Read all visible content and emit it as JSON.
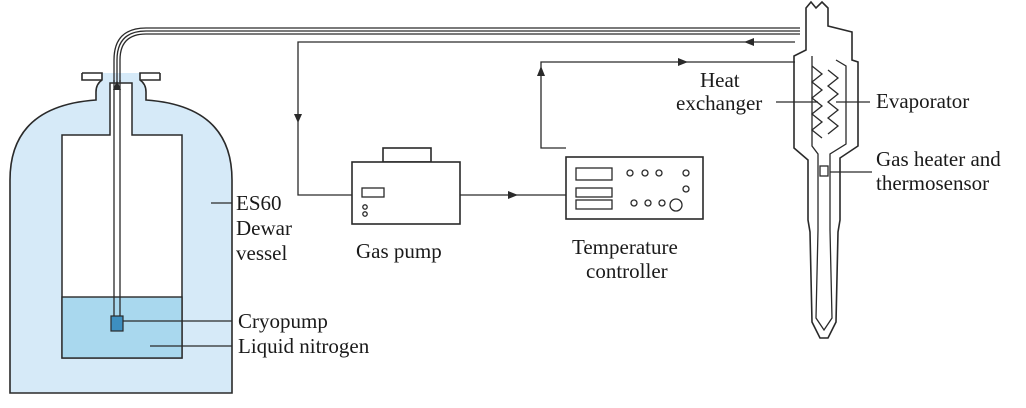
{
  "colors": {
    "dewar_fill": "#d6eaf8",
    "nitrogen_fill": "#a9d8ee",
    "line": "#2a2a2a",
    "background": "#ffffff"
  },
  "labels": {
    "dewar_line1": "ES60",
    "dewar_line2": "Dewar",
    "dewar_line3": "vessel",
    "cryopump": "Cryopump",
    "liquid_nitrogen": "Liquid nitrogen",
    "gas_pump": "Gas pump",
    "temp_controller_line1": "Temperature",
    "temp_controller_line2": "controller",
    "heat_exchanger_line1": "Heat",
    "heat_exchanger_line2": "exchanger",
    "evaporator": "Evaporator",
    "gas_heater_line1": "Gas heater and",
    "gas_heater_line2": "thermosensor"
  }
}
